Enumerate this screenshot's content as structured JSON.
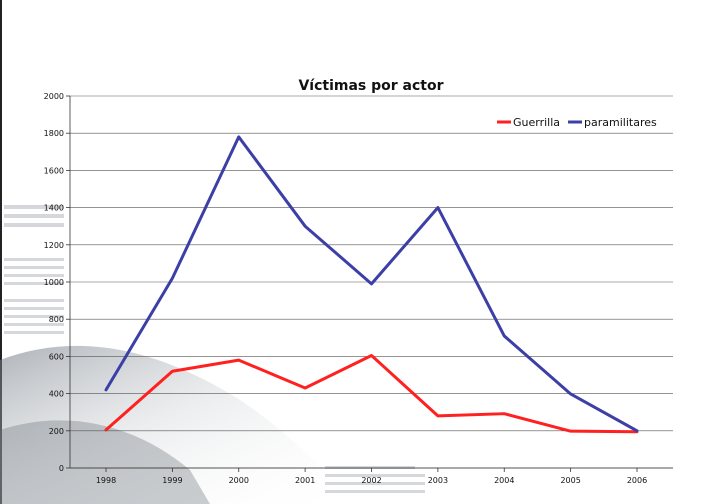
{
  "chart_data": {
    "type": "line",
    "title": "Víctimas por actor",
    "xlabel": "",
    "ylabel": "",
    "categories": [
      "1998",
      "1999",
      "2000",
      "2001",
      "2002",
      "2003",
      "2004",
      "2005",
      "2006"
    ],
    "ylim": [
      0,
      2000
    ],
    "yticks": [
      "0",
      "200",
      "400",
      "600",
      "800",
      "1000",
      "1200",
      "1400",
      "1600",
      "1800",
      "2000"
    ],
    "grid": true,
    "legend_position": "top-right",
    "series": [
      {
        "name": "Guerrilla",
        "color": "#ff2020",
        "values": [
          205,
          520,
          580,
          430,
          605,
          280,
          292,
          198,
          195
        ]
      },
      {
        "name": "paramilitares",
        "color": "#3b3fa6",
        "values": [
          420,
          1020,
          1780,
          1300,
          990,
          1400,
          710,
          398,
          200
        ]
      }
    ]
  }
}
